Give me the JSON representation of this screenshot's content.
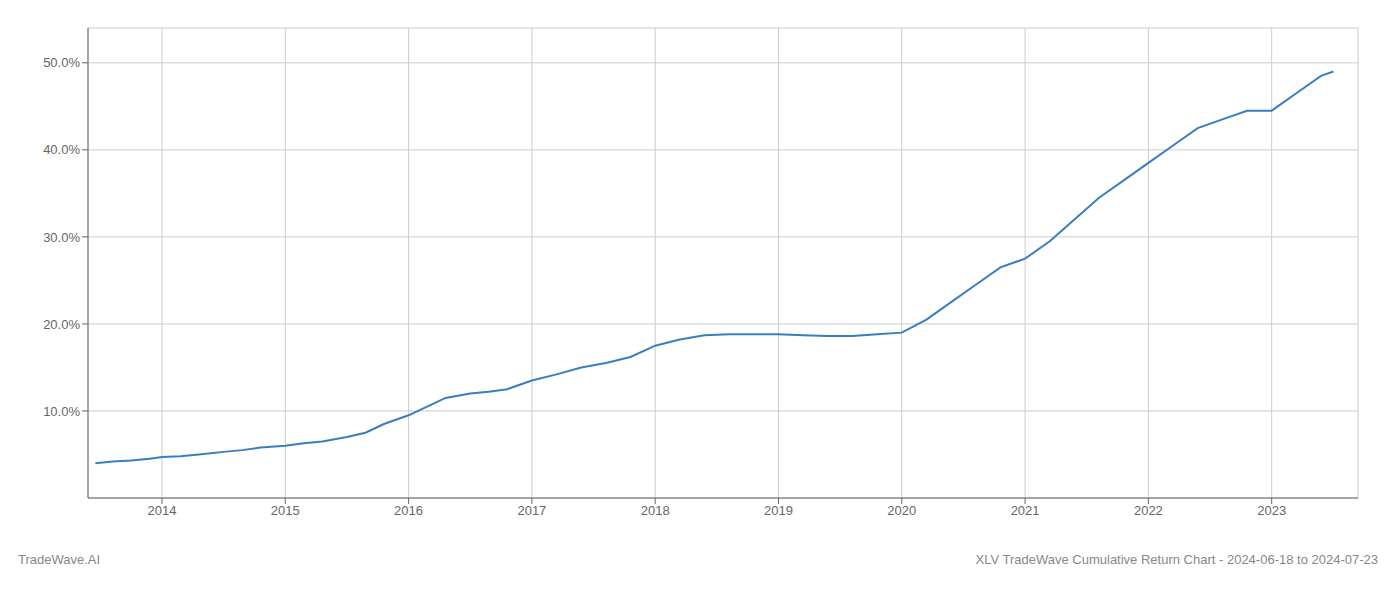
{
  "chart_data": {
    "type": "line",
    "title": "XLV TradeWave Cumulative Return Chart - 2024-06-18 to 2024-07-23",
    "annotations": [
      "TradeWave.AI"
    ],
    "x": [
      2013.46,
      2013.6,
      2013.75,
      2013.9,
      2014.0,
      2014.15,
      2014.3,
      2014.5,
      2014.65,
      2014.8,
      2015.0,
      2015.15,
      2015.3,
      2015.5,
      2015.65,
      2015.8,
      2016.0,
      2016.15,
      2016.3,
      2016.5,
      2016.65,
      2016.8,
      2017.0,
      2017.2,
      2017.4,
      2017.6,
      2017.8,
      2018.0,
      2018.2,
      2018.4,
      2018.6,
      2018.8,
      2019.0,
      2019.2,
      2019.4,
      2019.6,
      2019.8,
      2020.0,
      2020.2,
      2020.4,
      2020.6,
      2020.8,
      2021.0,
      2021.2,
      2021.4,
      2021.6,
      2021.8,
      2022.0,
      2022.2,
      2022.4,
      2022.6,
      2022.8,
      2023.0,
      2023.2,
      2023.4,
      2023.5
    ],
    "values": [
      4.0,
      4.2,
      4.3,
      4.5,
      4.7,
      4.8,
      5.0,
      5.3,
      5.5,
      5.8,
      6.0,
      6.3,
      6.5,
      7.0,
      7.5,
      8.5,
      9.5,
      10.5,
      11.5,
      12.0,
      12.2,
      12.5,
      13.5,
      14.2,
      15.0,
      15.5,
      16.2,
      17.5,
      18.2,
      18.7,
      18.8,
      18.8,
      18.8,
      18.7,
      18.6,
      18.6,
      18.8,
      19.0,
      20.5,
      22.5,
      24.5,
      26.5,
      27.5,
      29.5,
      32.0,
      34.5,
      36.5,
      38.5,
      40.5,
      42.5,
      43.5,
      44.5,
      44.5,
      46.5,
      48.5,
      49.0
    ],
    "color": "#3a7ebf",
    "xlim": [
      2013.4,
      2023.7
    ],
    "xticks": [
      2014,
      2015,
      2016,
      2017,
      2018,
      2019,
      2020,
      2021,
      2022,
      2023
    ],
    "ylim": [
      0,
      54
    ],
    "yticks": [
      {
        "value": 10.0,
        "label": "10.0%"
      },
      {
        "value": 20.0,
        "label": "20.0%"
      },
      {
        "value": 30.0,
        "label": "30.0%"
      },
      {
        "value": 40.0,
        "label": "40.0%"
      },
      {
        "value": 50.0,
        "label": "50.0%"
      }
    ],
    "grid": true
  }
}
